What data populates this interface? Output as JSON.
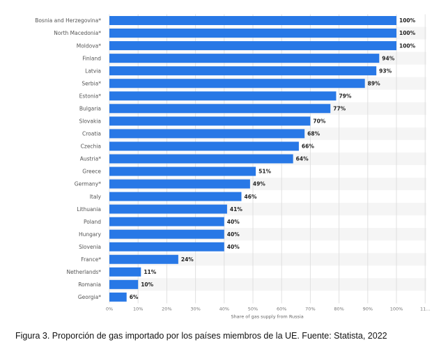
{
  "caption": "Figura 3. Proporción de gas importado por los países miembros de la UE. Fuente: Statista, 2022",
  "chart_data": {
    "type": "bar",
    "orientation": "horizontal",
    "categories": [
      "Bosnia and Herzegovina*",
      "North Macedonia*",
      "Moldova*",
      "Finland",
      "Latvia",
      "Serbia*",
      "Estonia*",
      "Bulgaria",
      "Slovakia",
      "Croatia",
      "Czechia",
      "Austria*",
      "Greece",
      "Germany*",
      "Italy",
      "Lithuania",
      "Poland",
      "Hungary",
      "Slovenia",
      "France*",
      "Netherlands*",
      "Romania",
      "Georgia*"
    ],
    "values": [
      100,
      100,
      100,
      94,
      93,
      89,
      79,
      77,
      70,
      68,
      66,
      64,
      51,
      49,
      46,
      41,
      40,
      40,
      40,
      24,
      11,
      10,
      6
    ],
    "value_labels": [
      "100%",
      "100%",
      "100%",
      "94%",
      "93%",
      "89%",
      "79%",
      "77%",
      "70%",
      "68%",
      "66%",
      "64%",
      "51%",
      "49%",
      "46%",
      "41%",
      "40%",
      "40%",
      "40%",
      "24%",
      "11%",
      "10%",
      "6%"
    ],
    "x_ticks": [
      "0%",
      "10%",
      "20%",
      "30%",
      "40%",
      "50%",
      "60%",
      "70%",
      "80%",
      "90%",
      "100%",
      "11..."
    ],
    "xlabel": "Share of gas supply from Russia",
    "xlim": [
      0,
      110
    ],
    "grid": true,
    "colors": {
      "bar": "#2878e6"
    }
  }
}
